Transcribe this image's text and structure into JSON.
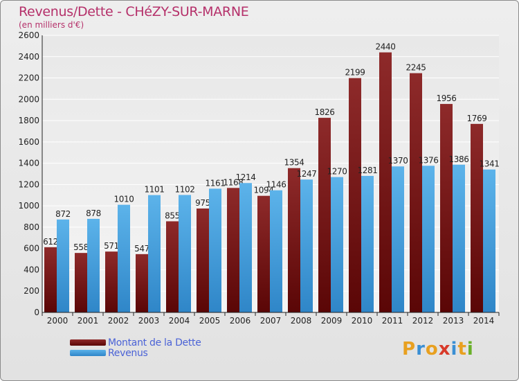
{
  "title": "Revenus/Dette - CHéZY-SUR-MARNE",
  "subtitle": "(en milliers d'€)",
  "brand": {
    "logo_text": "Proxiti"
  },
  "colors": {
    "dette": "#7a1a1a",
    "revenus": "#3c9ad8",
    "title": "#b5306a",
    "legend_text": "#4a62d6"
  },
  "chart_data": {
    "type": "bar",
    "title": "Revenus/Dette - CHéZY-SUR-MARNE",
    "ylabel": "(en milliers d'€)",
    "categories": [
      "2000",
      "2001",
      "2002",
      "2003",
      "2004",
      "2005",
      "2006",
      "2007",
      "2008",
      "2009",
      "2010",
      "2011",
      "2012",
      "2013",
      "2014"
    ],
    "series": [
      {
        "name": "Montant de la Dette",
        "values": [
          612,
          558,
          571,
          547,
          855,
          975,
          1168,
          1094,
          1354,
          1826,
          2199,
          2440,
          2245,
          1956,
          1769
        ]
      },
      {
        "name": "Revenus",
        "values": [
          872,
          878,
          1010,
          1101,
          1102,
          1161,
          1214,
          1146,
          1247,
          1270,
          1281,
          1370,
          1376,
          1386,
          1341
        ]
      }
    ],
    "ylim": [
      0,
      2600
    ],
    "yticks": [
      0,
      200,
      400,
      600,
      800,
      1000,
      1200,
      1400,
      1600,
      1800,
      2000,
      2200,
      2400,
      2600
    ],
    "grid": true,
    "legend_position": "bottom-left"
  }
}
